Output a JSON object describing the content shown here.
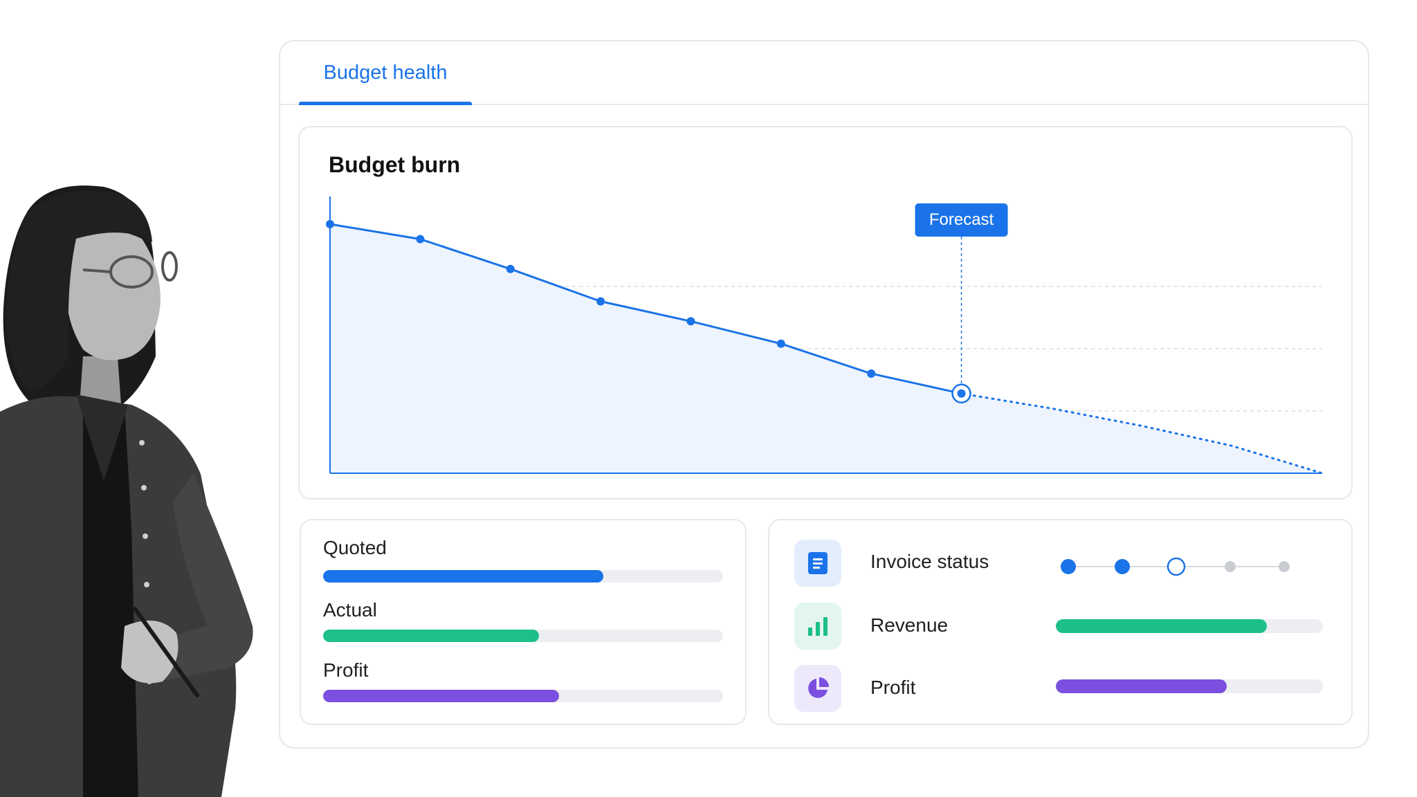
{
  "tabs": [
    {
      "label": "Budget health",
      "active": true
    }
  ],
  "chart_card": {
    "title": "Budget burn"
  },
  "chart_data": {
    "type": "line",
    "title": "Budget burn",
    "x": [
      0,
      1,
      2,
      3,
      4,
      5,
      6,
      7
    ],
    "values": [
      100,
      94,
      82,
      69,
      61,
      52,
      40,
      32
    ],
    "forecast_x": [
      7,
      8,
      9,
      10,
      11
    ],
    "forecast_values": [
      32,
      26,
      19,
      11,
      0
    ],
    "forecast_label": "Forecast",
    "ylim": [
      0,
      100
    ],
    "grid": "dashed horizontal",
    "colors": {
      "line": "#1a73e8",
      "area": "#eef4fd"
    }
  },
  "budget_bars": [
    {
      "label": "Quoted",
      "fraction": 0.7,
      "color": "#1a73e8"
    },
    {
      "label": "Actual",
      "fraction": 0.54,
      "color": "#1dbf8a"
    },
    {
      "label": "Profit",
      "fraction": 0.59,
      "color": "#7b4fe0"
    }
  ],
  "status_rows": [
    {
      "label": "Invoice status",
      "icon": "document-icon",
      "icon_bg": "#e3eefc",
      "icon_color": "#1a73e8",
      "kind": "steps",
      "steps": [
        "complete",
        "complete",
        "current",
        "pending",
        "pending"
      ]
    },
    {
      "label": "Revenue",
      "icon": "bar-chart-icon",
      "icon_bg": "#e2f6ee",
      "icon_color": "#1dbf8a",
      "kind": "bar",
      "fraction": 0.79,
      "color": "#1dbf8a"
    },
    {
      "label": "Profit",
      "icon": "pie-chart-icon",
      "icon_bg": "#eee8fb",
      "icon_color": "#7b4fe0",
      "kind": "bar",
      "fraction": 0.64,
      "color": "#7b4fe0"
    }
  ]
}
